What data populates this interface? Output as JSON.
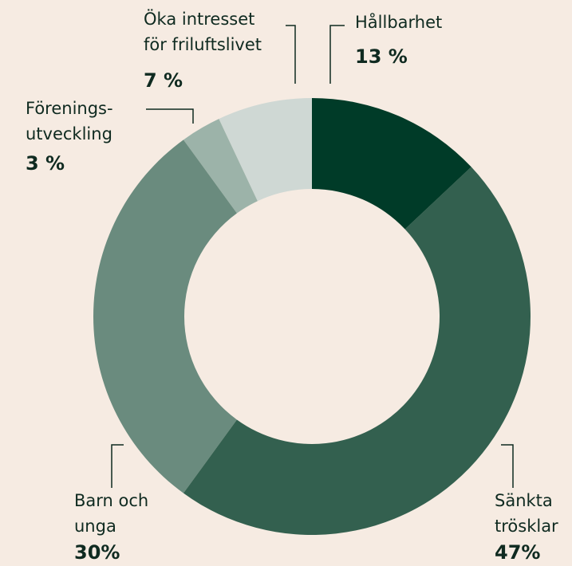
{
  "chart_data": {
    "type": "donut",
    "categories": [
      "Hållbarhet",
      "Sänkta\ntrösklar",
      "Barn och\nunga",
      "Förenings-\nutveckling",
      "Öka intresset\nför friluftslivet"
    ],
    "values": [
      13,
      47,
      30,
      3,
      7
    ],
    "value_labels": [
      "13 %",
      "47%",
      "30%",
      "3 %",
      "7 %"
    ],
    "colors": [
      "#003b28",
      "#33604f",
      "#6a8b7e",
      "#9cb3a9",
      "#cfd8d4"
    ]
  }
}
